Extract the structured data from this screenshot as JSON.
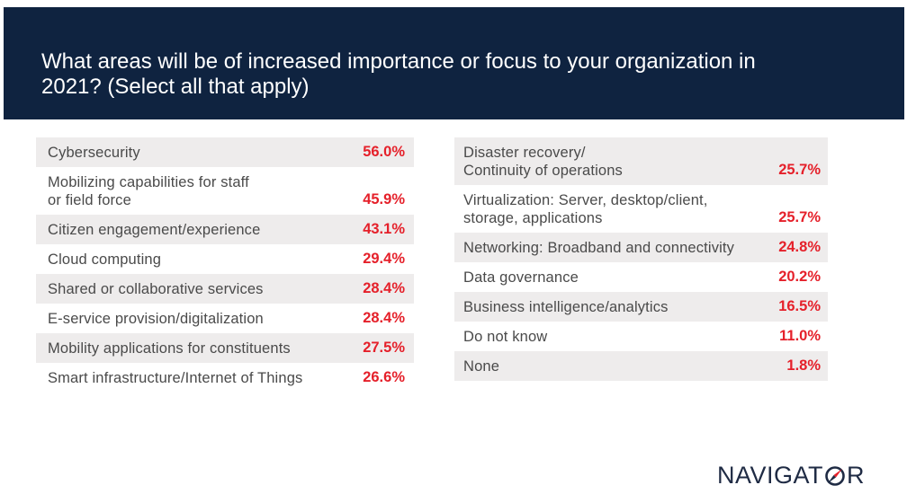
{
  "header": {
    "title": "What areas will be of increased importance or focus to your organization in 2021? (Select all that apply)"
  },
  "chart_data": {
    "type": "table",
    "title": "What areas will be of increased importance or focus to your organization in 2021? (Select all that apply)",
    "columns": [
      {
        "rows": [
          {
            "label": "Cybersecurity",
            "value": "56.0%"
          },
          {
            "label": "Mobilizing capabilities for staff\nor field force",
            "value": "45.9%"
          },
          {
            "label": "Citizen engagement/experience",
            "value": "43.1%"
          },
          {
            "label": "Cloud computing",
            "value": "29.4%"
          },
          {
            "label": "Shared or collaborative services",
            "value": "28.4%"
          },
          {
            "label": "E-service provision/digitalization",
            "value": "28.4%"
          },
          {
            "label": "Mobility applications for constituents",
            "value": "27.5%"
          },
          {
            "label": "Smart infrastructure/Internet of Things",
            "value": "26.6%"
          }
        ]
      },
      {
        "rows": [
          {
            "label": "Disaster recovery/\nContinuity of operations",
            "value": "25.7%"
          },
          {
            "label": "Virtualization: Server, desktop/client,\nstorage, applications",
            "value": "25.7%"
          },
          {
            "label": "Networking: Broadband and connectivity",
            "value": "24.8%"
          },
          {
            "label": "Data governance",
            "value": "20.2%"
          },
          {
            "label": "Business intelligence/analytics",
            "value": "16.5%"
          },
          {
            "label": "Do not know",
            "value": "11.0%"
          },
          {
            "label": "None",
            "value": "1.8%"
          }
        ]
      }
    ]
  },
  "colors": {
    "header_bg": "#0f2340",
    "value_red": "#e5202a",
    "row_shade": "#eeecec",
    "label_gray": "#4a4a4a"
  },
  "logo": {
    "text_before": "NAVIGAT",
    "text_after": "R",
    "icon": "compass-o-icon"
  }
}
